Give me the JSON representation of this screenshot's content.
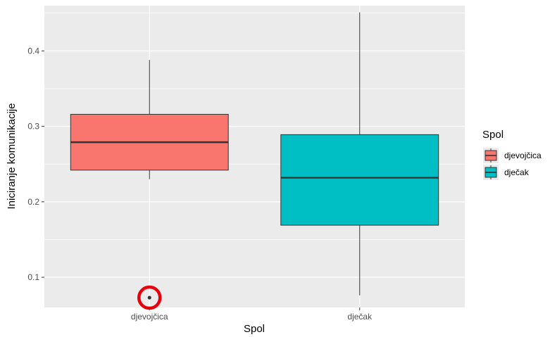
{
  "chart_data": {
    "type": "box",
    "xlabel": "Spol",
    "ylabel": "Iniciranje komunikacije",
    "categories": [
      "djevojčica",
      "dječak"
    ],
    "ylim": [
      0.06,
      0.46
    ],
    "yticks": [
      0.1,
      0.2,
      0.3,
      0.4
    ],
    "ytick_labels": [
      "0.1",
      "0.2",
      "0.3",
      "0.4"
    ],
    "grid": true,
    "boxes": [
      {
        "category": "djevojčica",
        "whisker_low": 0.23,
        "q1": 0.242,
        "median": 0.279,
        "q3": 0.316,
        "whisker_high": 0.388,
        "outliers": [
          0.073
        ],
        "color": "#F8766D"
      },
      {
        "category": "dječak",
        "whisker_low": 0.076,
        "q1": 0.169,
        "median": 0.232,
        "q3": 0.289,
        "whisker_high": 0.451,
        "outliers": [],
        "color": "#00BFC4"
      }
    ],
    "legend": {
      "title": "Spol",
      "position": "right",
      "entries": [
        {
          "label": "djevojčica",
          "color": "#F8766D"
        },
        {
          "label": "dječak",
          "color": "#00BFC4"
        }
      ]
    },
    "annotation": {
      "type": "circle",
      "color": "#e8000b",
      "target_value": 0.073,
      "target_category": "djevojčica"
    },
    "panel_color": "#ebebeb"
  }
}
